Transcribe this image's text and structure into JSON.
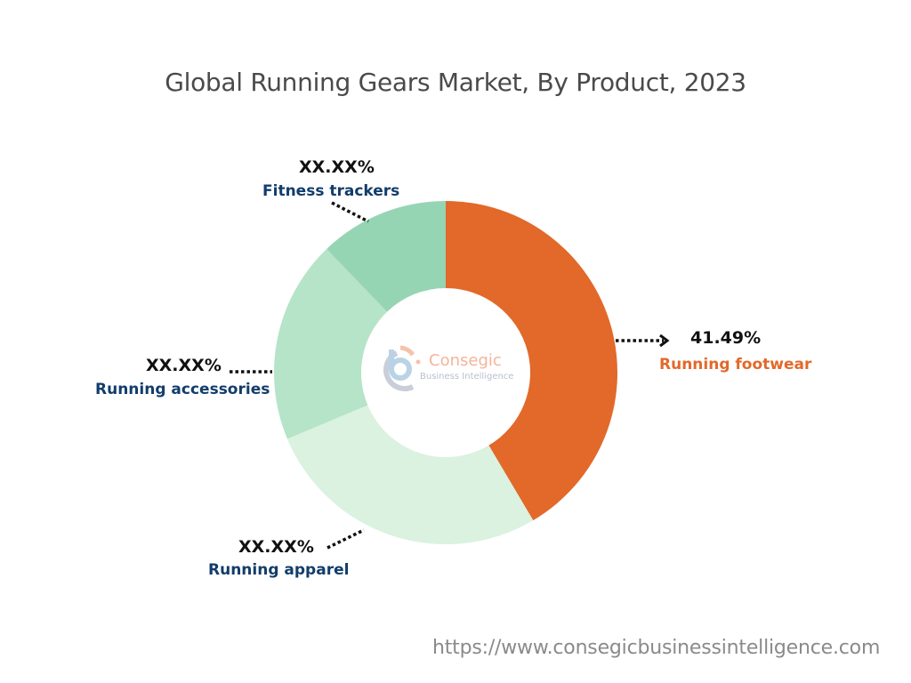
{
  "header": {
    "title": "Global Running Gears Market, By Product, 2023"
  },
  "chart_data": {
    "type": "pie",
    "subtype": "donut",
    "title": "Global Running Gears Market, By Product, 2023",
    "categories": [
      "Running footwear",
      "Running apparel",
      "Running accessories",
      "Fitness trackers"
    ],
    "values": [
      41.49,
      27.2,
      19.1,
      12.2
    ],
    "value_labels": [
      "41.49%",
      "XX.XX%",
      "XX.XX%",
      "XX.XX%"
    ],
    "colors": [
      "#e2692a",
      "#daf2df",
      "#b5e4c8",
      "#96d5b3"
    ],
    "legend_position": "none",
    "label_position": "outside with dotted leader lines"
  },
  "labels": {
    "footwear": {
      "pct": "41.49%",
      "name": "Running footwear",
      "color": "#e2692a"
    },
    "apparel": {
      "pct": "XX.XX%",
      "name": "Running apparel",
      "color": "#123d6b"
    },
    "accessories": {
      "pct": "XX.XX%",
      "name": "Running accessories",
      "color": "#123d6b"
    },
    "trackers": {
      "pct": "XX.XX%",
      "name": "Fitness trackers",
      "color": "#123d6b"
    }
  },
  "watermark": {
    "brand": "Consegic",
    "sub": "Business Intelligence"
  },
  "footer": {
    "url": "https://www.consegicbusinessintelligence.com"
  }
}
